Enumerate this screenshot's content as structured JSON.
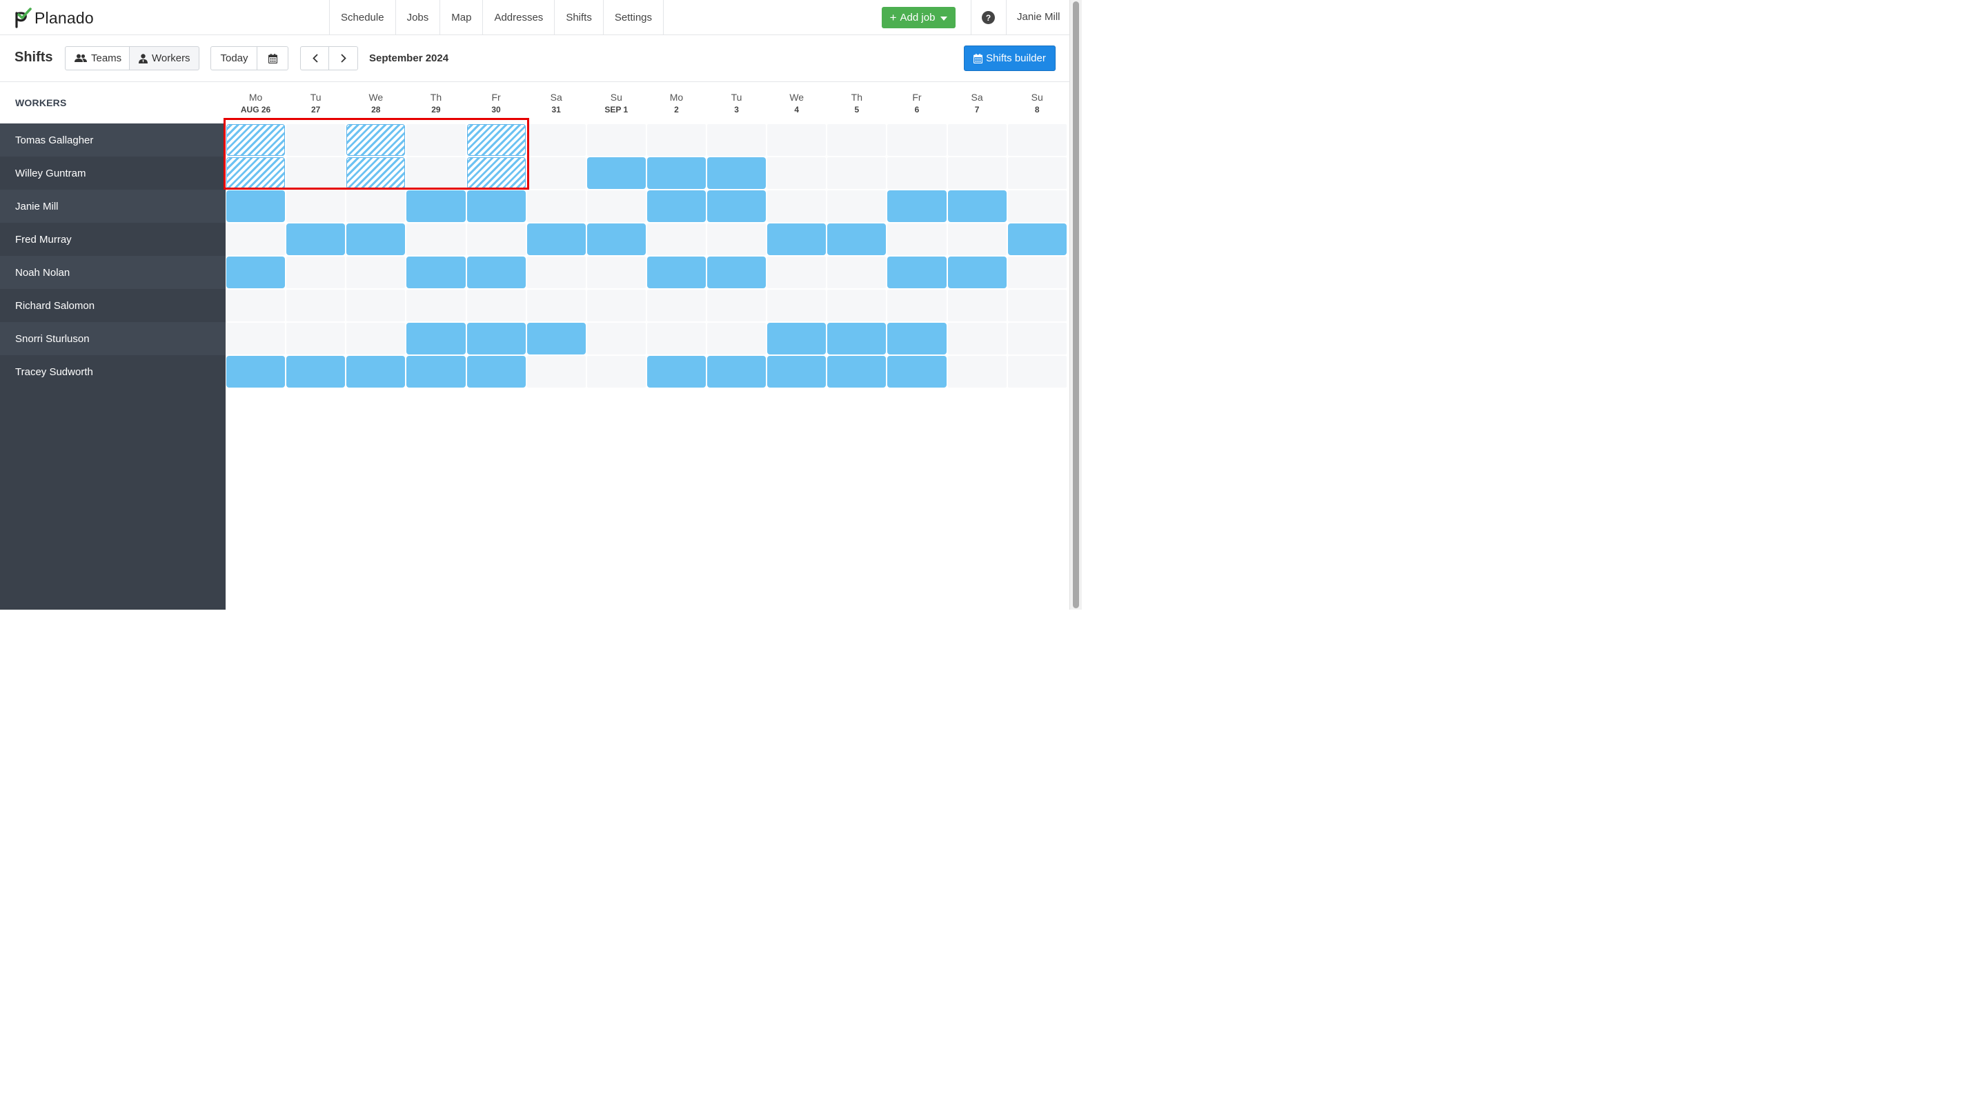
{
  "app": {
    "name": "Planado",
    "brand_color": "#4caf50"
  },
  "nav": {
    "items": [
      "Schedule",
      "Jobs",
      "Map",
      "Addresses",
      "Shifts",
      "Settings"
    ],
    "add_job_label": "Add job",
    "help_label": "?",
    "user_name": "Janie Mill"
  },
  "toolbar": {
    "title": "Shifts",
    "teams_label": "Teams",
    "workers_label": "Workers",
    "today_label": "Today",
    "period": "September 2024",
    "shifts_builder_label": "Shifts builder"
  },
  "grid": {
    "workers_header": "WORKERS",
    "days": [
      {
        "dow": "Mo",
        "date": "AUG 26"
      },
      {
        "dow": "Tu",
        "date": "27"
      },
      {
        "dow": "We",
        "date": "28"
      },
      {
        "dow": "Th",
        "date": "29"
      },
      {
        "dow": "Fr",
        "date": "30"
      },
      {
        "dow": "Sa",
        "date": "31"
      },
      {
        "dow": "Su",
        "date": "SEP 1"
      },
      {
        "dow": "Mo",
        "date": "2"
      },
      {
        "dow": "Tu",
        "date": "3"
      },
      {
        "dow": "We",
        "date": "4"
      },
      {
        "dow": "Th",
        "date": "5"
      },
      {
        "dow": "Fr",
        "date": "6"
      },
      {
        "dow": "Sa",
        "date": "7"
      },
      {
        "dow": "Su",
        "date": "8"
      }
    ],
    "workers": [
      {
        "name": "Tomas Gallagher",
        "cells": [
          "pattern",
          "",
          "pattern",
          "",
          "pattern",
          "",
          "",
          "",
          "",
          "",
          "",
          "",
          "",
          ""
        ]
      },
      {
        "name": "Willey Guntram",
        "cells": [
          "pattern",
          "",
          "pattern",
          "",
          "pattern",
          "",
          "shift",
          "shift",
          "shift",
          "",
          "",
          "",
          "",
          ""
        ]
      },
      {
        "name": "Janie Mill",
        "cells": [
          "shift",
          "",
          "",
          "shift",
          "shift",
          "",
          "",
          "shift",
          "shift",
          "",
          "",
          "shift",
          "shift",
          ""
        ]
      },
      {
        "name": "Fred Murray",
        "cells": [
          "",
          "shift",
          "shift",
          "",
          "",
          "shift",
          "shift",
          "",
          "",
          "shift",
          "shift",
          "",
          "",
          "shift"
        ]
      },
      {
        "name": "Noah Nolan",
        "cells": [
          "shift",
          "",
          "",
          "shift",
          "shift",
          "",
          "",
          "shift",
          "shift",
          "",
          "",
          "shift",
          "shift",
          ""
        ]
      },
      {
        "name": "Richard Salomon",
        "cells": [
          "",
          "",
          "",
          "",
          "",
          "",
          "",
          "",
          "",
          "",
          "",
          "",
          "",
          ""
        ]
      },
      {
        "name": "Snorri Sturluson",
        "cells": [
          "",
          "",
          "",
          "shift",
          "shift",
          "shift",
          "",
          "",
          "",
          "shift",
          "shift",
          "shift",
          "",
          ""
        ]
      },
      {
        "name": "Tracey Sudworth",
        "cells": [
          "shift",
          "shift",
          "shift",
          "shift",
          "shift",
          "",
          "",
          "shift",
          "shift",
          "shift",
          "shift",
          "shift",
          "",
          ""
        ]
      }
    ]
  },
  "colors": {
    "shift": "#6cc2f2",
    "sidebar": "#3a414b",
    "primary_button": "#1e88e5",
    "highlight": "#e60000"
  }
}
